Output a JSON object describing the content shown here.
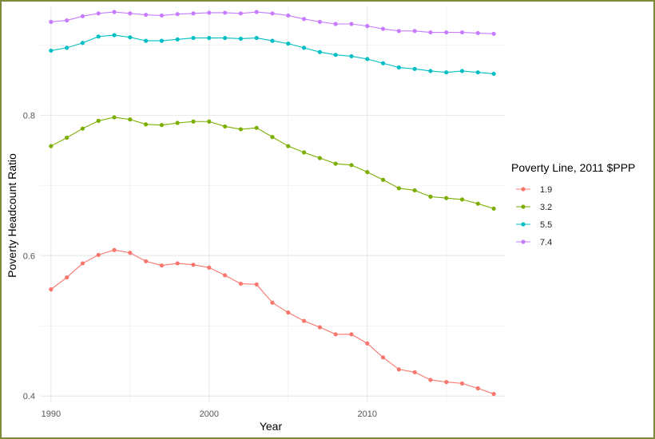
{
  "chart_data": {
    "type": "line",
    "xlabel": "Year",
    "ylabel": "Poverty Headcount Ratio",
    "xlim": [
      1989.3,
      2018.7
    ],
    "ylim": [
      0.39,
      0.955
    ],
    "x_ticks": [
      1990,
      2000,
      2010
    ],
    "y_ticks": [
      0.4,
      0.6,
      0.8
    ],
    "y_tick_labels": [
      "0.4",
      "0.6",
      "0.8"
    ],
    "grid": true,
    "legend": {
      "title": "Poverty Line, 2011 $PPP",
      "placement": "right"
    },
    "x": [
      1990,
      1991,
      1992,
      1993,
      1994,
      1995,
      1996,
      1997,
      1998,
      1999,
      2000,
      2001,
      2002,
      2003,
      2004,
      2005,
      2006,
      2007,
      2008,
      2009,
      2010,
      2011,
      2012,
      2013,
      2014,
      2015,
      2016,
      2017,
      2018
    ],
    "series": [
      {
        "name": "1.9",
        "color": "#F8766D",
        "values": [
          0.552,
          0.569,
          0.589,
          0.601,
          0.608,
          0.604,
          0.592,
          0.586,
          0.589,
          0.587,
          0.583,
          0.572,
          0.56,
          0.559,
          0.533,
          0.519,
          0.507,
          0.498,
          0.488,
          0.488,
          0.475,
          0.455,
          0.438,
          0.434,
          0.423,
          0.42,
          0.418,
          0.411,
          0.403
        ]
      },
      {
        "name": "3.2",
        "color": "#7CAE00",
        "values": [
          0.756,
          0.768,
          0.781,
          0.792,
          0.797,
          0.794,
          0.787,
          0.786,
          0.789,
          0.791,
          0.791,
          0.784,
          0.78,
          0.782,
          0.769,
          0.756,
          0.747,
          0.739,
          0.731,
          0.729,
          0.719,
          0.708,
          0.696,
          0.693,
          0.684,
          0.682,
          0.68,
          0.674,
          0.667
        ]
      },
      {
        "name": "5.5",
        "color": "#00BFC4",
        "values": [
          0.892,
          0.896,
          0.903,
          0.912,
          0.914,
          0.911,
          0.906,
          0.906,
          0.908,
          0.91,
          0.91,
          0.91,
          0.909,
          0.91,
          0.906,
          0.902,
          0.896,
          0.89,
          0.886,
          0.884,
          0.88,
          0.874,
          0.868,
          0.866,
          0.863,
          0.861,
          0.863,
          0.861,
          0.859
        ]
      },
      {
        "name": "7.4",
        "color": "#C77CFF",
        "values": [
          0.933,
          0.935,
          0.941,
          0.945,
          0.947,
          0.945,
          0.943,
          0.942,
          0.944,
          0.945,
          0.946,
          0.946,
          0.945,
          0.947,
          0.945,
          0.942,
          0.937,
          0.933,
          0.93,
          0.93,
          0.927,
          0.923,
          0.92,
          0.92,
          0.918,
          0.918,
          0.918,
          0.917,
          0.916
        ]
      }
    ]
  }
}
